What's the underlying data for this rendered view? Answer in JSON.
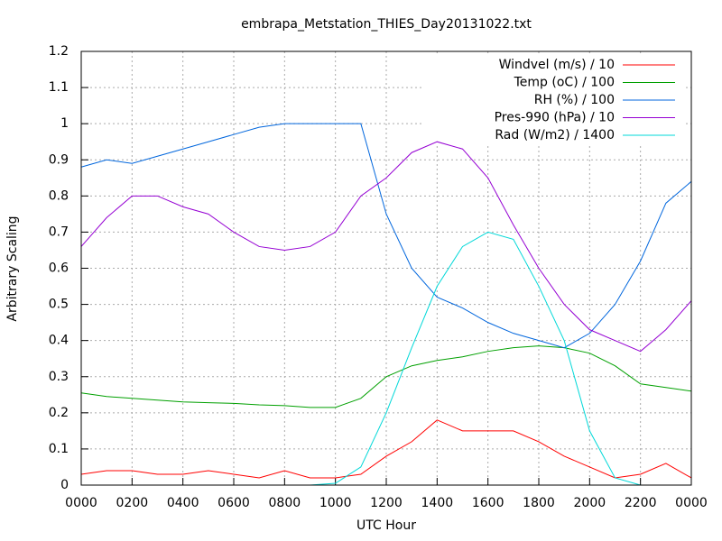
{
  "chart_data": {
    "type": "line",
    "title": "embrapa_Metstation_THIES_Day20131022.txt",
    "x_label": "UTC Hour",
    "y_label": "Arbitrary Scaling",
    "x": [
      0,
      1,
      2,
      3,
      4,
      5,
      6,
      7,
      8,
      9,
      10,
      11,
      12,
      13,
      14,
      15,
      16,
      17,
      18,
      19,
      20,
      21,
      22,
      23,
      24
    ],
    "series": [
      {
        "name": "Windvel (m/s) / 10",
        "color": "#ff0000",
        "values": [
          0.03,
          0.04,
          0.04,
          0.03,
          0.03,
          0.04,
          0.03,
          0.02,
          0.04,
          0.02,
          0.02,
          0.03,
          0.08,
          0.12,
          0.18,
          0.15,
          0.15,
          0.15,
          0.12,
          0.08,
          0.05,
          0.02,
          0.03,
          0.06,
          0.02
        ]
      },
      {
        "name": "Temp (oC) / 100",
        "color": "#00a000",
        "values": [
          0.255,
          0.245,
          0.24,
          0.235,
          0.23,
          0.228,
          0.226,
          0.222,
          0.22,
          0.215,
          0.215,
          0.24,
          0.3,
          0.33,
          0.345,
          0.355,
          0.37,
          0.38,
          0.385,
          0.38,
          0.365,
          0.33,
          0.28,
          0.27,
          0.26
        ]
      },
      {
        "name": "RH (%) / 100",
        "color": "#0066dd",
        "values": [
          0.88,
          0.9,
          0.89,
          0.91,
          0.93,
          0.95,
          0.97,
          0.99,
          1.0,
          1.0,
          1.0,
          1.0,
          0.75,
          0.6,
          0.52,
          0.49,
          0.45,
          0.42,
          0.4,
          0.38,
          0.42,
          0.5,
          0.62,
          0.78,
          0.84
        ]
      },
      {
        "name": "Pres-990 (hPa) / 10",
        "color": "#9500d3",
        "values": [
          0.66,
          0.74,
          0.8,
          0.8,
          0.77,
          0.75,
          0.7,
          0.66,
          0.65,
          0.66,
          0.7,
          0.8,
          0.85,
          0.92,
          0.95,
          0.93,
          0.85,
          0.72,
          0.6,
          0.5,
          0.43,
          0.4,
          0.37,
          0.43,
          0.51
        ]
      },
      {
        "name": "Rad (W/m2) / 1400",
        "color": "#00d8d8",
        "values": [
          0,
          0,
          0,
          0,
          0,
          0,
          0,
          0,
          0,
          0,
          0.005,
          0.05,
          0.2,
          0.38,
          0.55,
          0.66,
          0.7,
          0.68,
          0.55,
          0.4,
          0.15,
          0.02,
          0,
          0,
          0
        ]
      }
    ],
    "xlim": [
      0,
      24
    ],
    "xticks": [
      {
        "value": 0,
        "label": "0000"
      },
      {
        "value": 2,
        "label": "0200"
      },
      {
        "value": 4,
        "label": "0400"
      },
      {
        "value": 6,
        "label": "0600"
      },
      {
        "value": 8,
        "label": "0800"
      },
      {
        "value": 10,
        "label": "1000"
      },
      {
        "value": 12,
        "label": "1200"
      },
      {
        "value": 14,
        "label": "1400"
      },
      {
        "value": 16,
        "label": "1600"
      },
      {
        "value": 18,
        "label": "1800"
      },
      {
        "value": 20,
        "label": "2000"
      },
      {
        "value": 22,
        "label": "2200"
      },
      {
        "value": 24,
        "label": "0000"
      }
    ],
    "ylim": [
      0,
      1.2
    ],
    "yticks": [
      0,
      0.1,
      0.2,
      0.3,
      0.4,
      0.5,
      0.6,
      0.7,
      0.8,
      0.9,
      1,
      1.1,
      1.2
    ],
    "grid": true,
    "legend": "top-right"
  }
}
